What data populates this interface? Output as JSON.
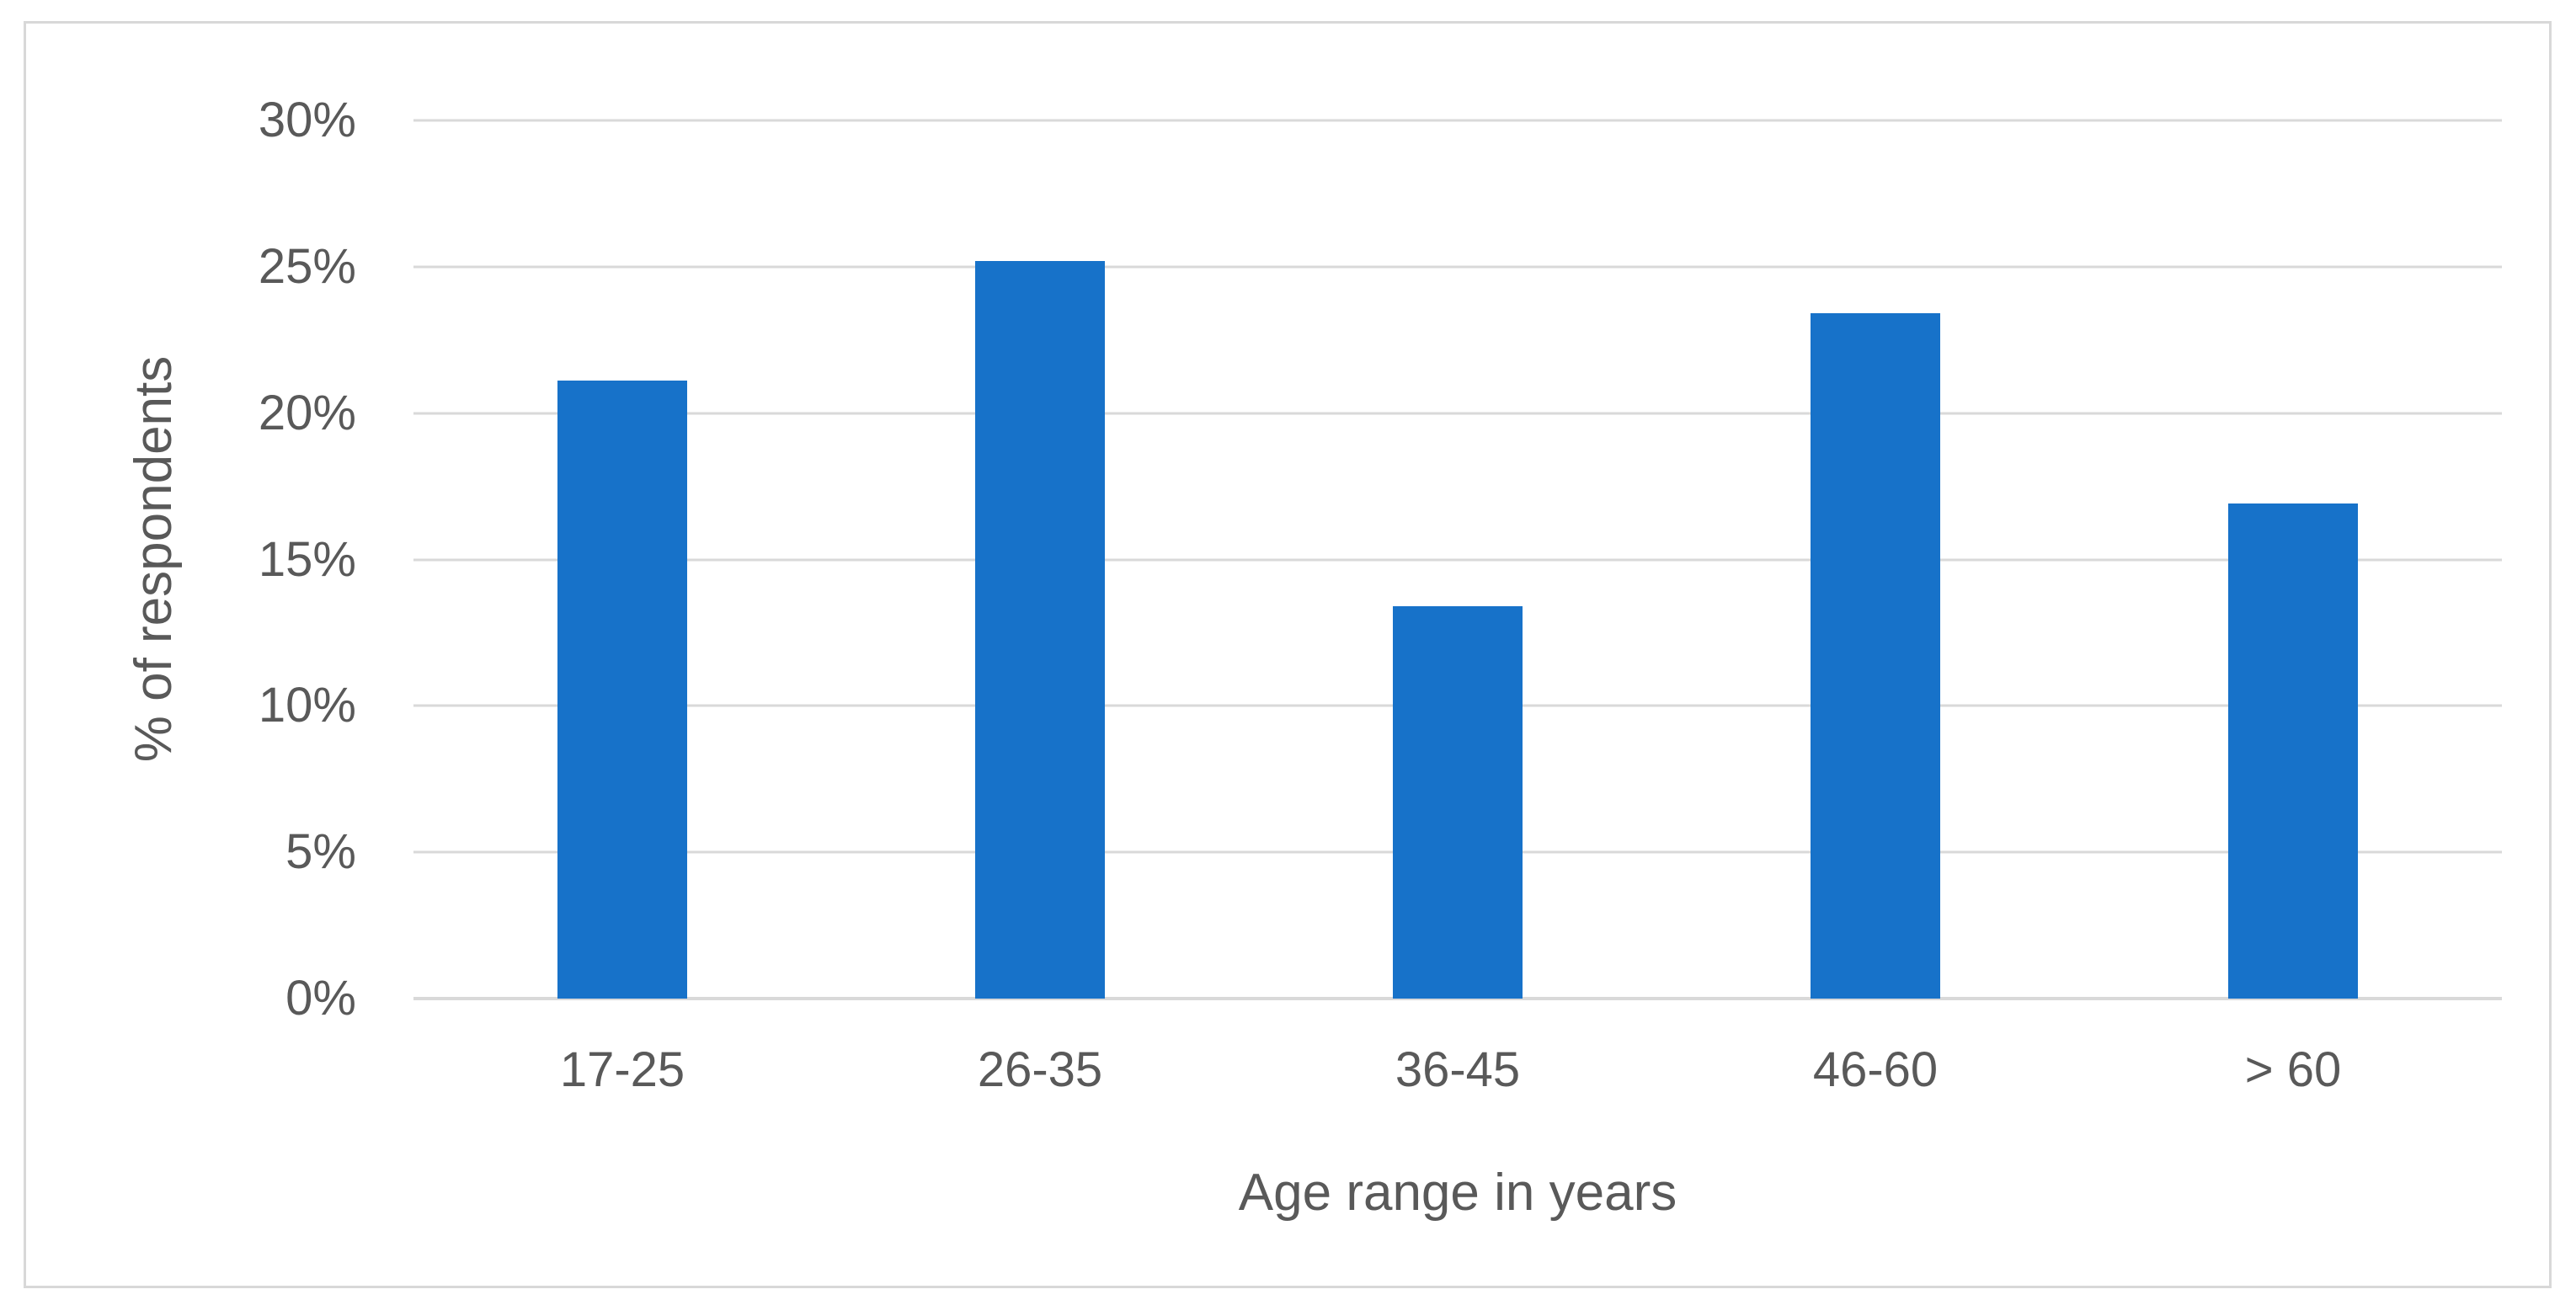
{
  "chart_data": {
    "type": "bar",
    "categories": [
      "17-25",
      "26-35",
      "36-45",
      "46-60",
      "> 60"
    ],
    "values": [
      21.1,
      25.2,
      13.4,
      23.4,
      16.9
    ],
    "title": "",
    "xlabel": "Age range in years",
    "ylabel": "% of respondents",
    "ylim": [
      0,
      30
    ],
    "y_tick_step": 5,
    "y_tick_labels": [
      "0%",
      "5%",
      "10%",
      "15%",
      "20%",
      "25%",
      "30%"
    ],
    "grid": true,
    "legend": false,
    "colors": {
      "bar": "#1772c9",
      "text": "#595959",
      "gridline": "#d9d9d9",
      "frame_border": "#d8d8d8",
      "background": "#ffffff"
    }
  }
}
